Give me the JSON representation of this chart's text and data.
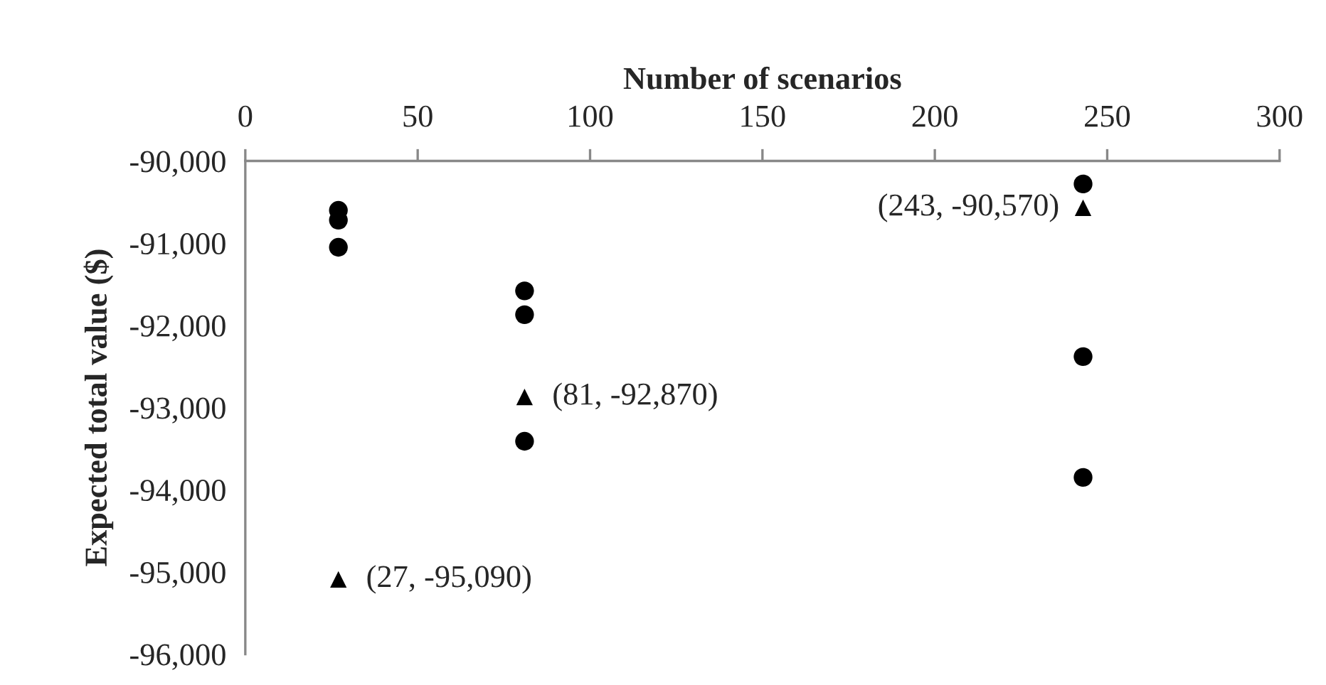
{
  "chart_data": {
    "type": "scatter",
    "xlabel": "Number of scenarios",
    "ylabel": "Expected total value ($)",
    "xlim": [
      0,
      300
    ],
    "xticks": [
      0,
      50,
      100,
      150,
      200,
      250,
      300
    ],
    "ylim": [
      -96000,
      -90000
    ],
    "yticks": [
      {
        "value": -96000,
        "label": "-96,000"
      },
      {
        "value": -95000,
        "label": "-95,000"
      },
      {
        "value": -94000,
        "label": "-94,000"
      },
      {
        "value": -93000,
        "label": "-93,000"
      },
      {
        "value": -92000,
        "label": "-92,000"
      },
      {
        "value": -91000,
        "label": "-91,000"
      },
      {
        "value": -90000,
        "label": "-90,000"
      }
    ],
    "grid": false,
    "legend": false,
    "series": [
      {
        "color": "#000000",
        "marker": "circle",
        "x": [
          27,
          27,
          27,
          81,
          81,
          81,
          243,
          243,
          243
        ],
        "values": [
          -90600,
          -90720,
          -91050,
          -91580,
          -91870,
          -93410,
          -90280,
          -92380,
          -93850
        ]
      },
      {
        "color": "#000000",
        "marker": "triangle",
        "x": [
          27,
          81,
          243
        ],
        "values": [
          -95090,
          -92870,
          -90570
        ]
      }
    ],
    "annotations": [
      {
        "text": "(27, -95,090)",
        "x": 27,
        "y": -95090
      },
      {
        "text": "(81, -92,870)",
        "x": 81,
        "y": -92870
      },
      {
        "text": "(243, -90,570)",
        "x": 243,
        "y": -90570
      }
    ]
  }
}
